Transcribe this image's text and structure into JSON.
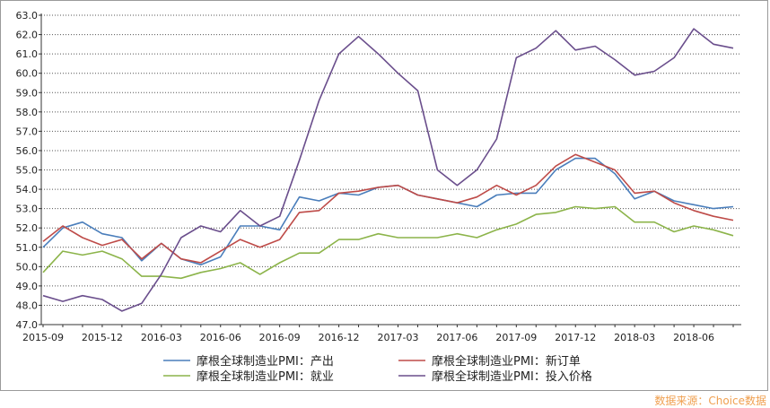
{
  "chart_data": {
    "type": "line",
    "title": "",
    "xlabel": "",
    "ylabel": "",
    "ylim": [
      47.0,
      63.0
    ],
    "y_ticks": [
      "47.0",
      "48.0",
      "49.0",
      "50.0",
      "51.0",
      "52.0",
      "53.0",
      "54.0",
      "55.0",
      "56.0",
      "57.0",
      "58.0",
      "59.0",
      "60.0",
      "61.0",
      "62.0",
      "63.0"
    ],
    "x_tick_labels": [
      "2015-09",
      "2015-12",
      "2016-03",
      "2016-06",
      "2016-09",
      "2016-12",
      "2017-03",
      "2017-06",
      "2017-09",
      "2017-12",
      "2018-03",
      "2018-06"
    ],
    "x": [
      "2015-09",
      "2015-10",
      "2015-11",
      "2015-12",
      "2016-01",
      "2016-02",
      "2016-03",
      "2016-04",
      "2016-05",
      "2016-06",
      "2016-07",
      "2016-08",
      "2016-09",
      "2016-10",
      "2016-11",
      "2016-12",
      "2017-01",
      "2017-02",
      "2017-03",
      "2017-04",
      "2017-05",
      "2017-06",
      "2017-07",
      "2017-08",
      "2017-09",
      "2017-10",
      "2017-11",
      "2017-12",
      "2018-01",
      "2018-02",
      "2018-03",
      "2018-04",
      "2018-05",
      "2018-06",
      "2018-07",
      "2018-08"
    ],
    "grid": "horizontal dotted",
    "legend_position": "bottom",
    "series": [
      {
        "name": "摩根全球制造业PMI：产出",
        "color": "#4a7ebb",
        "values": [
          51.0,
          52.0,
          52.3,
          51.7,
          51.5,
          50.3,
          51.2,
          50.4,
          50.1,
          50.5,
          52.1,
          52.1,
          51.9,
          53.6,
          53.4,
          53.8,
          53.7,
          54.1,
          54.2,
          53.7,
          53.5,
          53.3,
          53.1,
          53.7,
          53.8,
          53.8,
          55.0,
          55.6,
          55.6,
          54.8,
          53.5,
          53.9,
          53.4,
          53.2,
          53.0,
          53.1
        ]
      },
      {
        "name": "摩根全球制造业PMI：新订单",
        "color": "#be4b48",
        "values": [
          51.3,
          52.1,
          51.5,
          51.1,
          51.4,
          50.4,
          51.2,
          50.4,
          50.2,
          50.8,
          51.4,
          51.0,
          51.4,
          52.8,
          52.9,
          53.8,
          53.9,
          54.1,
          54.2,
          53.7,
          53.5,
          53.3,
          53.6,
          54.2,
          53.7,
          54.2,
          55.2,
          55.8,
          55.4,
          55.0,
          53.8,
          53.9,
          53.3,
          52.9,
          52.6,
          52.4
        ]
      },
      {
        "name": "摩根全球制造业PMI：就业",
        "color": "#8cb44a",
        "values": [
          49.7,
          50.8,
          50.6,
          50.8,
          50.4,
          49.5,
          49.5,
          49.4,
          49.7,
          49.9,
          50.2,
          49.6,
          50.2,
          50.7,
          50.7,
          51.4,
          51.4,
          51.7,
          51.5,
          51.5,
          51.5,
          51.7,
          51.5,
          51.9,
          52.2,
          52.7,
          52.8,
          53.1,
          53.0,
          53.1,
          52.3,
          52.3,
          51.8,
          52.1,
          51.9,
          51.6
        ]
      },
      {
        "name": "摩根全球制造业PMI：投入价格",
        "color": "#6a4e8c",
        "values": [
          48.5,
          48.2,
          48.5,
          48.3,
          47.7,
          48.1,
          49.6,
          51.5,
          52.1,
          51.8,
          52.9,
          52.1,
          52.6,
          55.5,
          58.6,
          61.0,
          61.9,
          61.0,
          60.0,
          59.1,
          55.0,
          54.2,
          55.0,
          56.6,
          60.8,
          61.3,
          62.2,
          61.2,
          61.4,
          60.7,
          59.9,
          60.1,
          60.8,
          62.3,
          61.5,
          61.3
        ]
      }
    ]
  },
  "source_note": "数据来源：Choice数据"
}
